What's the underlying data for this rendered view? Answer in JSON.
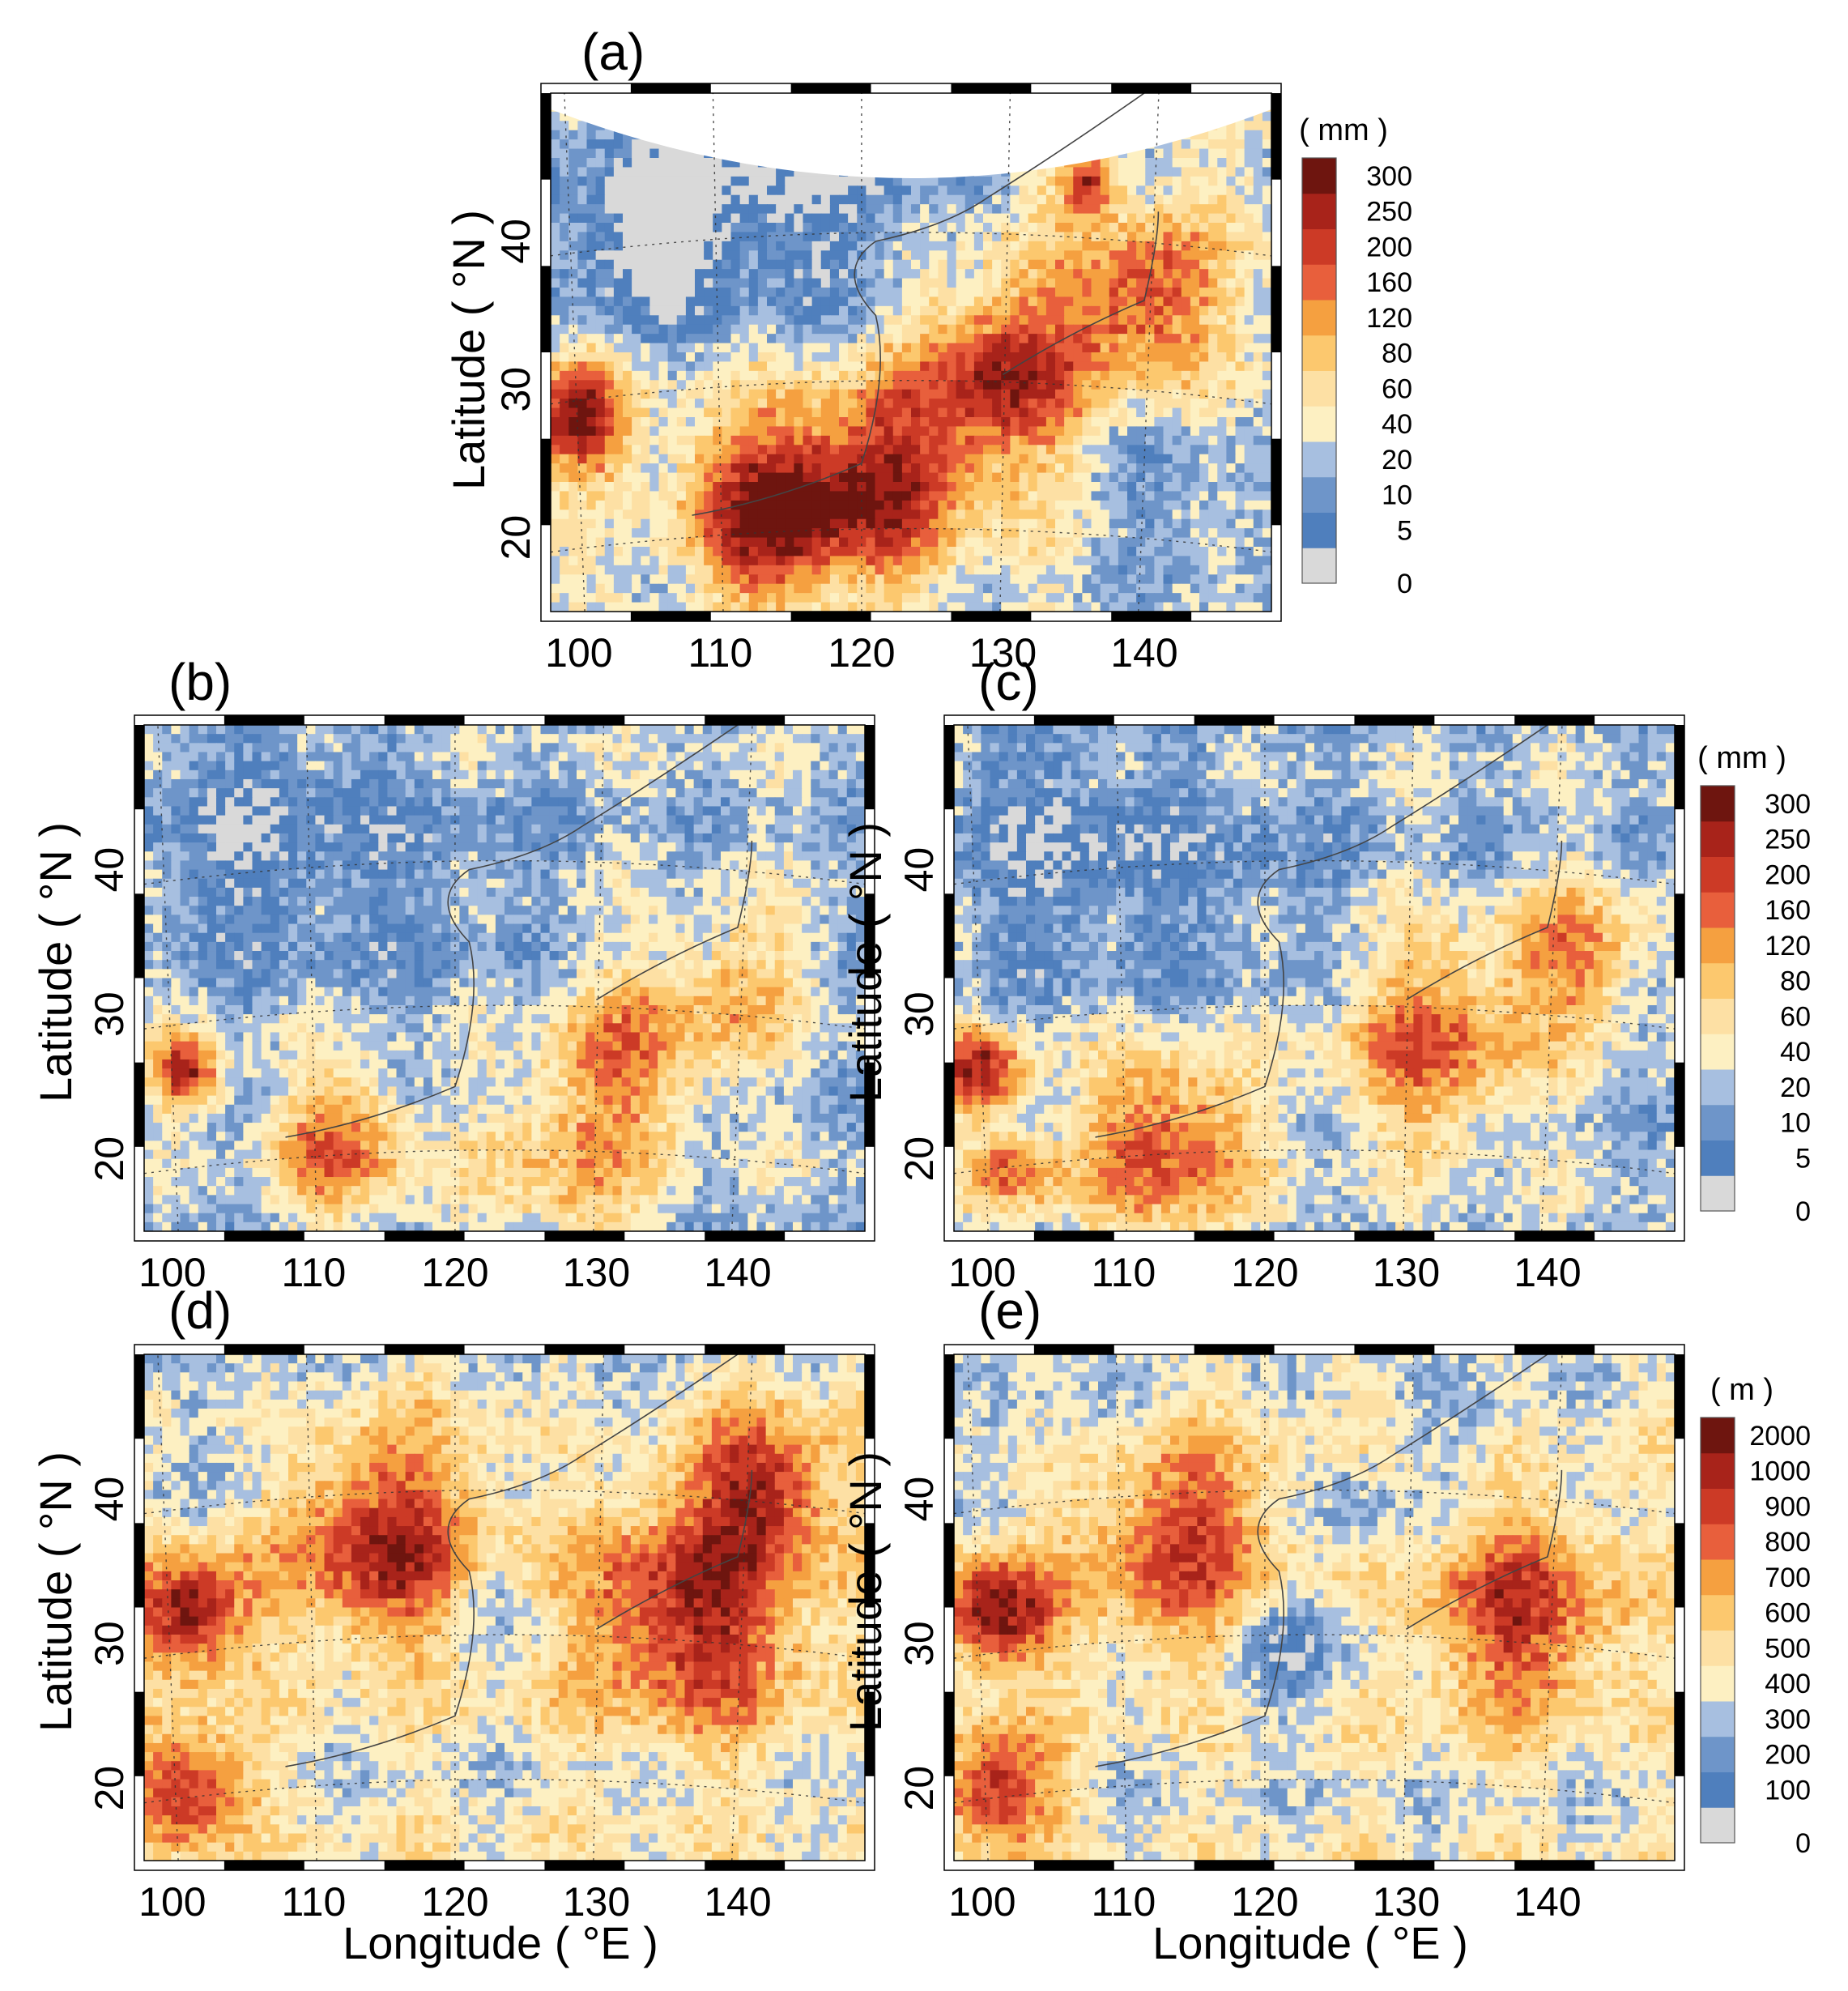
{
  "chart_data": {
    "type": "heatmap",
    "panels": [
      {
        "id": "a",
        "label": "(a)",
        "xlabel": "",
        "ylabel": "Latitude ( °N )",
        "xticks": [
          "100",
          "110",
          "120",
          "130",
          "140"
        ],
        "yticks": [
          "20",
          "30",
          "40"
        ],
        "xlim": [
          98,
          149
        ],
        "ylim": [
          15,
          50
        ],
        "colorbar": "rain",
        "palette_family": "rain",
        "field": {
          "background_level": 4,
          "blobs": [
            {
              "lon": 110,
              "lat": 44,
              "r": 10,
              "level": -3
            },
            {
              "lon": 104,
              "lat": 40,
              "r": 6,
              "level": -3
            },
            {
              "lon": 120,
              "lat": 43,
              "r": 8,
              "level": -2
            },
            {
              "lon": 100,
              "lat": 28,
              "r": 3.5,
              "level": 7
            },
            {
              "lon": 114,
              "lat": 22,
              "r": 6,
              "level": 7
            },
            {
              "lon": 122,
              "lat": 24,
              "r": 6,
              "level": 5
            },
            {
              "lon": 130,
              "lat": 31,
              "r": 6,
              "level": 6
            },
            {
              "lon": 140,
              "lat": 36,
              "r": 5,
              "level": 5
            },
            {
              "lon": 136,
              "lat": 44,
              "r": 2,
              "level": 6
            },
            {
              "lon": 142,
              "lat": 22,
              "r": 7,
              "level": -2
            },
            {
              "lon": 103,
              "lat": 20,
              "r": 3,
              "level": -1
            }
          ]
        }
      },
      {
        "id": "b",
        "label": "(b)",
        "xlabel": "",
        "ylabel": "Latitude ( °N )",
        "xticks": [
          "100",
          "110",
          "120",
          "130",
          "140"
        ],
        "yticks": [
          "20",
          "30",
          "40"
        ],
        "xlim": [
          98,
          149
        ],
        "ylim": [
          15,
          50
        ],
        "colorbar": "rain",
        "palette_family": "rain",
        "field": {
          "background_level": 3,
          "blobs": [
            {
              "lon": 105,
              "lat": 42,
              "r": 8,
              "level": -2
            },
            {
              "lon": 118,
              "lat": 40,
              "r": 9,
              "level": -1
            },
            {
              "lon": 101,
              "lat": 26,
              "r": 2.5,
              "level": 7
            },
            {
              "lon": 112,
              "lat": 21,
              "r": 5,
              "level": 5
            },
            {
              "lon": 132,
              "lat": 27,
              "r": 6,
              "level": 4
            },
            {
              "lon": 140,
              "lat": 32,
              "r": 5,
              "level": 3
            },
            {
              "lon": 128,
              "lat": 19,
              "r": 6,
              "level": 3
            }
          ]
        }
      },
      {
        "id": "c",
        "label": "(c)",
        "xlabel": "",
        "ylabel": "Latitude ( °N )",
        "xticks": [
          "100",
          "110",
          "120",
          "130",
          "140"
        ],
        "yticks": [
          "20",
          "30",
          "40"
        ],
        "xlim": [
          98,
          149
        ],
        "ylim": [
          15,
          50
        ],
        "colorbar": "rain",
        "palette_family": "rain",
        "field": {
          "background_level": 3,
          "blobs": [
            {
              "lon": 105,
              "lat": 42,
              "r": 8,
              "level": -2
            },
            {
              "lon": 118,
              "lat": 40,
              "r": 9,
              "level": -1
            },
            {
              "lon": 100,
              "lat": 26,
              "r": 3,
              "level": 7
            },
            {
              "lon": 113,
              "lat": 21,
              "r": 6,
              "level": 6
            },
            {
              "lon": 132,
              "lat": 28,
              "r": 7,
              "level": 5
            },
            {
              "lon": 142,
              "lat": 34,
              "r": 5,
              "level": 4
            },
            {
              "lon": 102,
              "lat": 19,
              "r": 3,
              "level": 5
            }
          ]
        }
      },
      {
        "id": "d",
        "label": "(d)",
        "xlabel": "Longitude ( °E )",
        "ylabel": "Latitude ( °N )",
        "xticks": [
          "100",
          "110",
          "120",
          "130",
          "140"
        ],
        "yticks": [
          "20",
          "30",
          "40"
        ],
        "xlim": [
          98,
          149
        ],
        "ylim": [
          15,
          50
        ],
        "colorbar": "height",
        "palette_family": "height",
        "field": {
          "background_level": 4,
          "blobs": [
            {
              "lon": 101,
              "lat": 32,
              "r": 4,
              "level": 7
            },
            {
              "lon": 101,
              "lat": 20,
              "r": 4,
              "level": 6
            },
            {
              "lon": 115,
              "lat": 37,
              "r": 7,
              "level": 6
            },
            {
              "lon": 137,
              "lat": 32,
              "r": 8,
              "level": 6
            },
            {
              "lon": 142,
              "lat": 41,
              "r": 5,
              "level": 5
            },
            {
              "lon": 122,
              "lat": 33,
              "r": 3,
              "level": -2
            },
            {
              "lon": 106,
              "lat": 45,
              "r": 6,
              "level": -1
            },
            {
              "lon": 130,
              "lat": 46,
              "r": 4,
              "level": -1
            }
          ]
        }
      },
      {
        "id": "e",
        "label": "(e)",
        "xlabel": "Longitude ( °E )",
        "ylabel": "Latitude ( °N )",
        "xticks": [
          "100",
          "110",
          "120",
          "130",
          "140"
        ],
        "yticks": [
          "20",
          "30",
          "40"
        ],
        "xlim": [
          98,
          149
        ],
        "ylim": [
          15,
          50
        ],
        "colorbar": "height",
        "palette_family": "height",
        "field": {
          "background_level": 4,
          "blobs": [
            {
              "lon": 101,
              "lat": 32,
              "r": 4,
              "level": 7
            },
            {
              "lon": 101,
              "lat": 20,
              "r": 4,
              "level": 6
            },
            {
              "lon": 114,
              "lat": 37,
              "r": 7,
              "level": 5
            },
            {
              "lon": 138,
              "lat": 32,
              "r": 7,
              "level": 5
            },
            {
              "lon": 122,
              "lat": 30,
              "r": 4,
              "level": -3
            },
            {
              "lon": 126,
              "lat": 40,
              "r": 3,
              "level": -2
            },
            {
              "lon": 106,
              "lat": 45,
              "r": 6,
              "level": -1
            },
            {
              "lon": 135,
              "lat": 45,
              "r": 5,
              "level": -1
            }
          ]
        }
      }
    ],
    "colorbars": {
      "rain": {
        "unit": "( mm )",
        "labels": [
          "0",
          "5",
          "10",
          "20",
          "40",
          "60",
          "80",
          "120",
          "160",
          "200",
          "250",
          "300"
        ],
        "colors": [
          "#d9d9d9",
          "#4f7fbd",
          "#6e95c9",
          "#a7bfe0",
          "#fdf0c2",
          "#fde0a4",
          "#fcc86e",
          "#f5a040",
          "#e85f3c",
          "#cc3a26",
          "#a8231a",
          "#6e150f"
        ]
      },
      "height": {
        "unit": "( m )",
        "labels": [
          "0",
          "100",
          "200",
          "300",
          "400",
          "500",
          "600",
          "700",
          "800",
          "900",
          "1000",
          "2000"
        ],
        "colors": [
          "#d9d9d9",
          "#4f7fbd",
          "#6e95c9",
          "#a7bfe0",
          "#fdf0c2",
          "#fde0a4",
          "#fcc86e",
          "#f5a040",
          "#e85f3c",
          "#cc3a26",
          "#a8231a",
          "#6e150f"
        ]
      }
    }
  }
}
